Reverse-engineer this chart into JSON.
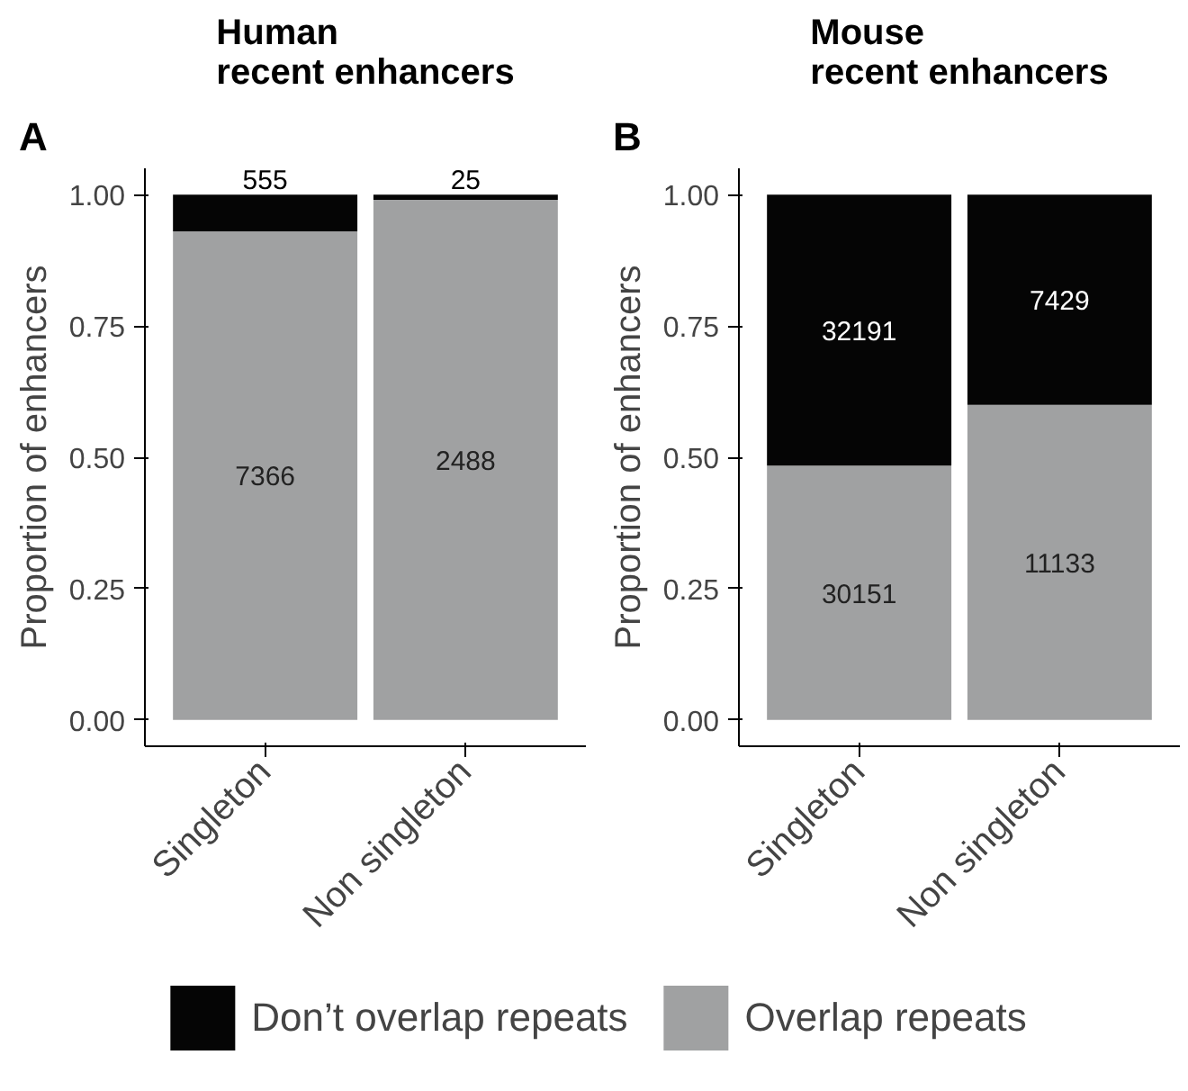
{
  "chart_data": [
    {
      "type": "bar",
      "stacked": true,
      "title": "Human\nrecent enhancers",
      "categories": [
        "Singleton",
        "Non singleton"
      ],
      "ylabel": "Proportion of enhancers",
      "ylim": [
        -0.05,
        1.05
      ],
      "yticks": [
        {
          "value": 0,
          "label": "0.00"
        },
        {
          "value": 0.25,
          "label": "0.25"
        },
        {
          "value": 0.5,
          "label": "0.50"
        },
        {
          "value": 0.75,
          "label": "0.75"
        },
        {
          "value": 1,
          "label": "1.00"
        }
      ],
      "grid": false,
      "legend": "bottom",
      "annotations": [
        "A",
        "7366",
        "2488",
        {
          "text": "555",
          "x": "Singleton",
          "y": 1.0
        },
        {
          "text": "25",
          "x": "Non singleton",
          "y": 1.0
        }
      ],
      "series": [
        {
          "name": "Overlap repeats",
          "color": "#a0a1a2",
          "values": [
            0.93,
            0.99
          ]
        },
        {
          "name": "Don’t overlap repeats",
          "color": "#050505",
          "values": [
            0.07,
            0.01
          ]
        }
      ]
    },
    {
      "type": "bar",
      "stacked": true,
      "title": "Mouse\nrecent enhancers",
      "categories": [
        "Singleton",
        "Non singleton"
      ],
      "ylabel": "Proportion of enhancers",
      "ylim": [
        -0.05,
        1.05
      ],
      "yticks": [
        {
          "value": 0,
          "label": "0.00"
        },
        {
          "value": 0.25,
          "label": "0.25"
        },
        {
          "value": 0.5,
          "label": "0.50"
        },
        {
          "value": 0.75,
          "label": "0.75"
        },
        {
          "value": 1,
          "label": "1.00"
        }
      ],
      "grid": false,
      "annotations": [
        "B",
        "30151",
        "11133",
        "32191",
        "7429"
      ],
      "series": [
        {
          "name": "Overlap repeats",
          "color": "#a0a1a2",
          "values": [
            0.484,
            0.6
          ]
        },
        {
          "name": "Don’t overlap repeats",
          "color": "#050505",
          "values": [
            0.516,
            0.4
          ]
        }
      ]
    }
  ]
}
